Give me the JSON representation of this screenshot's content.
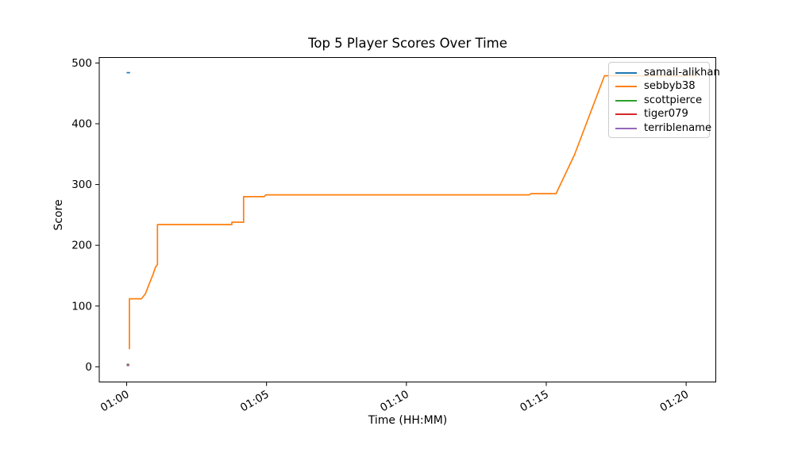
{
  "figure": {
    "background": "#ffffff"
  },
  "chart_data": {
    "type": "line",
    "title": "Top 5 Player Scores Over Time",
    "xlabel": "Time (HH:MM)",
    "ylabel": "Score",
    "x_axis_unit": "minutes_after_01:00",
    "xlim": [
      -0.98,
      21.06
    ],
    "ylim": [
      -25,
      509
    ],
    "grid": false,
    "legend_position": "upper right",
    "x_ticks": [
      {
        "m": 0,
        "label": "01:00"
      },
      {
        "m": 5,
        "label": "01:05"
      },
      {
        "m": 10,
        "label": "01:10"
      },
      {
        "m": 15,
        "label": "01:15"
      },
      {
        "m": 20,
        "label": "01:20"
      }
    ],
    "y_ticks": [
      {
        "v": 0,
        "label": "0"
      },
      {
        "v": 100,
        "label": "100"
      },
      {
        "v": 200,
        "label": "200"
      },
      {
        "v": 300,
        "label": "300"
      },
      {
        "v": 400,
        "label": "400"
      },
      {
        "v": 500,
        "label": "500"
      }
    ],
    "series": [
      {
        "name": "samail-alikhan",
        "color": "#1f77b4",
        "points": [
          [
            0,
            484
          ],
          [
            0.12,
            484
          ]
        ]
      },
      {
        "name": "sebbyb38",
        "color": "#ff7f0e",
        "points": [
          [
            0.1,
            29
          ],
          [
            0.1,
            112
          ],
          [
            0.53,
            112
          ],
          [
            0.67,
            120
          ],
          [
            0.81,
            137
          ],
          [
            0.95,
            153
          ],
          [
            1.03,
            164
          ],
          [
            1.1,
            168
          ],
          [
            1.1,
            234
          ],
          [
            3.76,
            234
          ],
          [
            3.76,
            238
          ],
          [
            4.18,
            238
          ],
          [
            4.18,
            280
          ],
          [
            4.92,
            280
          ],
          [
            4.97,
            283
          ],
          [
            14.4,
            283
          ],
          [
            14.45,
            285
          ],
          [
            15.35,
            285
          ],
          [
            16.01,
            349
          ],
          [
            16.06,
            355
          ],
          [
            17.08,
            479
          ],
          [
            20.4,
            479
          ]
        ]
      },
      {
        "name": "scottpierce",
        "color": "#2ca02c",
        "points": [
          [
            0,
            4
          ],
          [
            0.09,
            4
          ]
        ]
      },
      {
        "name": "tiger079",
        "color": "#d62728",
        "points": [
          [
            0,
            3
          ],
          [
            0.09,
            3
          ]
        ]
      },
      {
        "name": "terriblename",
        "color": "#9467bd",
        "points": [
          [
            0,
            2
          ],
          [
            0.09,
            2
          ]
        ]
      }
    ]
  }
}
